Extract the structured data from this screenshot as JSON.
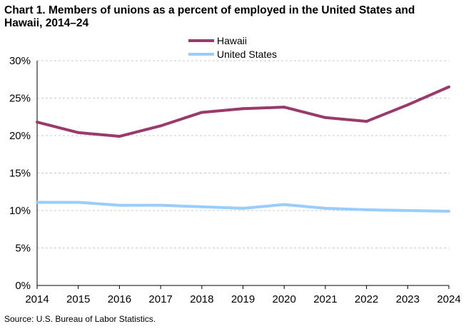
{
  "chart_data": {
    "type": "line",
    "title_line1": "Chart 1. Members of unions as a percent of employed  in the United States and",
    "title_line2": "Hawaii, 2014–24",
    "x": [
      2014,
      2015,
      2016,
      2017,
      2018,
      2019,
      2020,
      2021,
      2022,
      2023,
      2024
    ],
    "x_tick_labels": [
      "2014",
      "2015",
      "2016",
      "2017",
      "2018",
      "2019",
      "2020",
      "2021",
      "2022",
      "2023",
      "2024"
    ],
    "y_tick_labels": [
      "0%",
      "5%",
      "10%",
      "15%",
      "20%",
      "25%",
      "30%"
    ],
    "y_ticks": [
      0,
      5,
      10,
      15,
      20,
      25,
      30
    ],
    "ylim": [
      0,
      30
    ],
    "xlabel": "",
    "ylabel": "",
    "grid": "horizontal dashed",
    "legend_position": "top-center",
    "series": [
      {
        "name": "Hawaii",
        "color": "#983a6a",
        "values": [
          21.8,
          20.4,
          19.9,
          21.3,
          23.1,
          23.6,
          23.8,
          22.4,
          21.9,
          24.1,
          26.5
        ]
      },
      {
        "name": "United States",
        "color": "#99ccff",
        "values": [
          11.1,
          11.1,
          10.7,
          10.7,
          10.5,
          10.3,
          10.8,
          10.3,
          10.1,
          10.0,
          9.9
        ]
      }
    ],
    "source": "Source:  U.S. Bureau  of Labor Statistics."
  }
}
